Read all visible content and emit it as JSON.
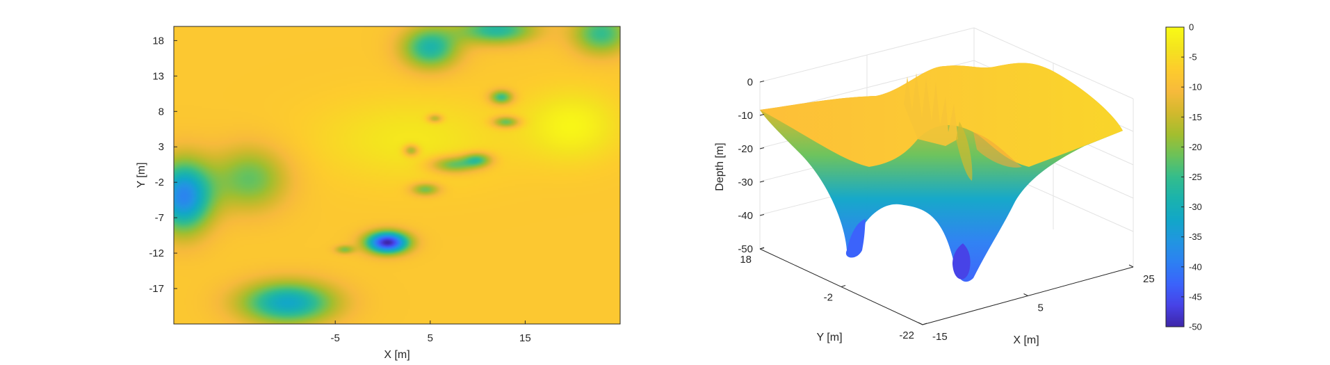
{
  "chart_data": [
    {
      "type": "heatmap",
      "title": "",
      "xlabel": "X [m]",
      "ylabel": "Y [m]",
      "x_ticks": [
        "-5",
        "5",
        "15"
      ],
      "y_ticks": [
        "18",
        "13",
        "8",
        "3",
        "-2",
        "-7",
        "-12",
        "-17"
      ],
      "xlim": [
        -22,
        25
      ],
      "ylim": [
        -22,
        20
      ],
      "value_range": [
        -50,
        0
      ],
      "colormap": "parula",
      "grid": false,
      "baseline_depth": -8,
      "features": [
        {
          "x": 0.5,
          "y": -10.5,
          "depth": -50,
          "rx": 2.2,
          "ry": 1.5
        },
        {
          "x": -21,
          "y": -4,
          "depth": -38,
          "rx": 3.0,
          "ry": 5.0
        },
        {
          "x": -14,
          "y": -1.5,
          "depth": -22,
          "rx": 4.0,
          "ry": 4.5
        },
        {
          "x": -10,
          "y": -19,
          "depth": -32,
          "rx": 5.0,
          "ry": 3.0
        },
        {
          "x": 5,
          "y": 17,
          "depth": -28,
          "rx": 3.0,
          "ry": 3.0
        },
        {
          "x": 12,
          "y": 19.5,
          "depth": -27,
          "rx": 4.0,
          "ry": 2.0
        },
        {
          "x": 23,
          "y": 19,
          "depth": -25,
          "rx": 3.0,
          "ry": 3.0
        },
        {
          "x": 7.5,
          "y": 0.5,
          "depth": -24,
          "rx": 2.5,
          "ry": 1.2
        },
        {
          "x": 10,
          "y": 1.2,
          "depth": -24,
          "rx": 1.5,
          "ry": 1.0
        },
        {
          "x": 12.5,
          "y": 10,
          "depth": -26,
          "rx": 1.2,
          "ry": 1.0
        },
        {
          "x": 13,
          "y": 6.5,
          "depth": -24,
          "rx": 1.4,
          "ry": 0.8
        },
        {
          "x": 4.5,
          "y": -3,
          "depth": -22,
          "rx": 1.5,
          "ry": 0.9
        },
        {
          "x": 3,
          "y": 2.5,
          "depth": -22,
          "rx": 0.8,
          "ry": 0.8
        },
        {
          "x": 5.5,
          "y": 7,
          "depth": -20,
          "rx": 0.8,
          "ry": 0.6
        },
        {
          "x": -4,
          "y": -11.5,
          "depth": -20,
          "rx": 1.0,
          "ry": 0.6
        },
        {
          "x": 20,
          "y": 6,
          "depth": -1,
          "rx": 5.0,
          "ry": 5.0
        },
        {
          "x": 3,
          "y": 4,
          "depth": -3,
          "rx": 10.0,
          "ry": 6.0
        }
      ]
    },
    {
      "type": "surface",
      "title": "",
      "xlabel": "X [m]",
      "ylabel": "Y [m]",
      "zlabel": "Depth [m]",
      "x_ticks": [
        "-15",
        "5",
        "25"
      ],
      "y_ticks": [
        "18",
        "-2",
        "-22"
      ],
      "z_ticks": [
        "0",
        "-10",
        "-20",
        "-30",
        "-40",
        "-50"
      ],
      "zlim": [
        -50,
        0
      ],
      "grid": true,
      "colorbar": {
        "ticks": [
          "0",
          "-5",
          "-10",
          "-15",
          "-20",
          "-25",
          "-30",
          "-35",
          "-40",
          "-45",
          "-50"
        ],
        "range": [
          -50,
          0
        ],
        "colormap": "parula"
      }
    }
  ],
  "colors": {
    "parula": [
      "#3e26a8",
      "#4743e7",
      "#3b63fb",
      "#2d80f3",
      "#2296e1",
      "#12a7c8",
      "#1bb3ad",
      "#34bd8c",
      "#6bc25a",
      "#a4be2e",
      "#d2b92d",
      "#f7ba3c",
      "#fdcc2d",
      "#f4e41f",
      "#f9fb15"
    ]
  }
}
